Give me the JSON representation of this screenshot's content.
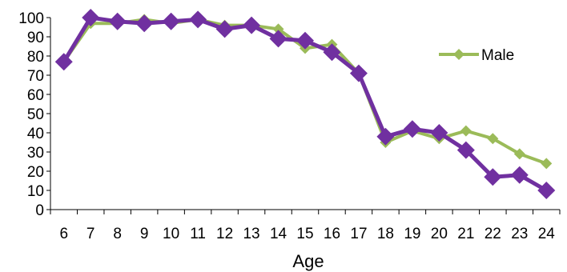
{
  "chart_data": {
    "type": "line",
    "x": [
      6,
      7,
      8,
      9,
      10,
      11,
      12,
      13,
      14,
      15,
      16,
      17,
      18,
      19,
      20,
      21,
      22,
      23,
      24
    ],
    "xlabel": "Age",
    "ylabel": "",
    "ylim": [
      0,
      100
    ],
    "yticks": [
      0,
      10,
      20,
      30,
      40,
      50,
      60,
      70,
      80,
      90,
      100
    ],
    "grid": false,
    "legend_position": "right",
    "series": [
      {
        "name": "Male",
        "color": "#9BBB59",
        "marker": "diamond-small",
        "values": [
          77,
          97,
          97,
          99,
          97,
          99,
          96,
          96,
          94,
          84,
          86,
          71,
          35,
          41,
          37,
          41,
          37,
          29,
          24
        ]
      },
      {
        "color": "#7030A0",
        "marker": "diamond-large",
        "values": [
          77,
          100,
          98,
          97,
          98,
          99,
          94,
          96,
          89,
          88,
          82,
          71,
          38,
          42,
          40,
          31,
          17,
          18,
          10
        ]
      }
    ]
  }
}
